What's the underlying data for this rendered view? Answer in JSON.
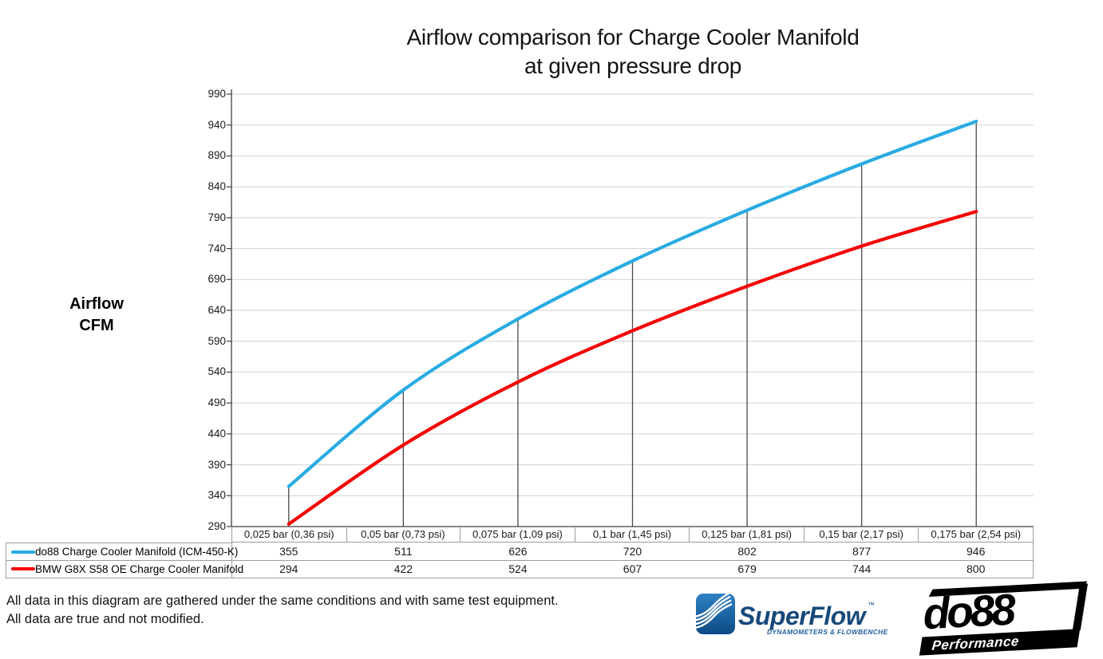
{
  "title": {
    "line1": "Airflow comparison for Charge Cooler Manifold",
    "line2": "at given pressure drop"
  },
  "y_axis_label": {
    "line1": "Airflow",
    "line2": "CFM"
  },
  "footer": {
    "line1": "All data in this diagram are gathered under the same conditions and with same test equipment.",
    "line2": "All data are true and not modified."
  },
  "logos": {
    "superflow": {
      "wordmark": "SuperFlow",
      "trademark": "™",
      "tagline": "DYNAMOMETERS & FLOWBENCHES",
      "wordmark_color": "#17497B",
      "tagline_color": "#1D5C9C",
      "icon_gradient_top": "#2E81C4",
      "icon_gradient_bottom": "#0D4A84"
    },
    "do88": {
      "wordmark": "do88",
      "tagline": "Performance",
      "color": "#000000"
    }
  },
  "chart_data": {
    "type": "line",
    "title": "Airflow comparison for Charge Cooler Manifold at given pressure drop",
    "ylabel": "Airflow CFM",
    "categories": [
      "0,025 bar (0,36 psi)",
      "0,05 bar (0,73 psi)",
      "0,075 bar (1,09 psi)",
      "0,1 bar (1,45 psi)",
      "0,125 bar (1,81 psi)",
      "0,15 bar (2,17 psi)",
      "0,175 bar (2,54 psi)"
    ],
    "series": [
      {
        "name": "do88 Charge Cooler Manifold (ICM-450-K)",
        "color": "#29ABE2",
        "values": [
          355,
          511,
          626,
          720,
          802,
          877,
          946
        ]
      },
      {
        "name": "BMW G8X S58 OE Charge Cooler Manifold",
        "color": "#F40000",
        "values": [
          294,
          422,
          524,
          607,
          679,
          744,
          800
        ]
      }
    ],
    "y_ticks": [
      290,
      340,
      390,
      440,
      490,
      540,
      590,
      640,
      690,
      740,
      790,
      840,
      890,
      940,
      990
    ],
    "ylim": [
      290,
      990
    ],
    "grid": true,
    "smooth": true,
    "legend_position": "table-left",
    "drop_lines_to_series": "do88 Charge Cooler Manifold (ICM-450-K)",
    "grid_color": "#D2D2D2",
    "axis_color": "#3F3F3F",
    "drop_line_color": "#4A4A4A",
    "table_border_color": "#9C9C9C"
  }
}
